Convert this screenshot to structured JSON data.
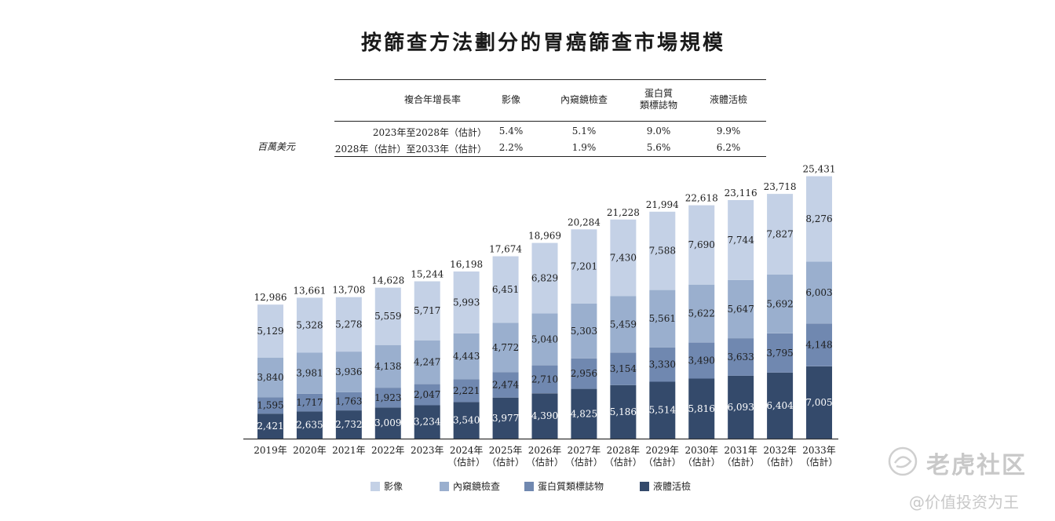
{
  "chart_data": {
    "type": "bar",
    "stacked": true,
    "title": "按篩查方法劃分的胃癌篩查市場規模",
    "unit": "百萬美元",
    "categories": [
      "2019年",
      "2020年",
      "2021年",
      "2022年",
      "2023年",
      "2024年\n（估計）",
      "2025年\n（估計）",
      "2026年\n（估計）",
      "2027年\n（估計）",
      "2028年\n（估計）",
      "2029年\n（估計）",
      "2030年\n（估計）",
      "2031年\n（估計）",
      "2032年\n（估計）",
      "2033年\n（估計）"
    ],
    "series": [
      {
        "name": "液體活檢",
        "color": "#344a6b",
        "values": [
          2421,
          2635,
          2732,
          3009,
          3234,
          3540,
          3977,
          4390,
          4825,
          5186,
          5514,
          5816,
          6093,
          6404,
          7005
        ]
      },
      {
        "name": "蛋白質類標誌物",
        "color": "#7088b0",
        "values": [
          1595,
          1717,
          1763,
          1923,
          2047,
          2221,
          2474,
          2710,
          2956,
          3154,
          3330,
          3490,
          3633,
          3795,
          4148
        ]
      },
      {
        "name": "內窺鏡檢查",
        "color": "#9aafce",
        "values": [
          3840,
          3981,
          3936,
          4138,
          4247,
          4443,
          4772,
          5040,
          5303,
          5459,
          5561,
          5622,
          5647,
          5692,
          6003
        ]
      },
      {
        "name": "影像",
        "color": "#c4d1e6",
        "values": [
          5129,
          5328,
          5278,
          5559,
          5717,
          5993,
          6451,
          6829,
          7201,
          7430,
          7588,
          7690,
          7744,
          7827,
          8276
        ]
      }
    ],
    "totals": [
      12986,
      13661,
      13708,
      14628,
      15244,
      16198,
      17674,
      18969,
      20284,
      21228,
      21994,
      22618,
      23116,
      23718,
      25431
    ],
    "ylim": [
      0,
      26000
    ],
    "grid": false,
    "legend_position": "bottom",
    "legend_order": [
      "影像",
      "內窺鏡檢查",
      "蛋白質類標誌物",
      "液體活檢"
    ]
  },
  "cagr_table": {
    "header_label": "複合年增長率",
    "columns": [
      "影像",
      "內窺鏡檢查",
      "蛋白質\n類標誌物",
      "液體活檢"
    ],
    "rows": [
      {
        "period": "2023年至2028年（估計）",
        "values": [
          "5.4%",
          "5.1%",
          "9.0%",
          "9.9%"
        ]
      },
      {
        "period": "2028年（估計）至2033年（估計）",
        "values": [
          "2.2%",
          "1.9%",
          "5.6%",
          "6.2%"
        ]
      }
    ]
  },
  "watermark": {
    "brand": "老虎社区",
    "user": "@价值投资为王"
  }
}
